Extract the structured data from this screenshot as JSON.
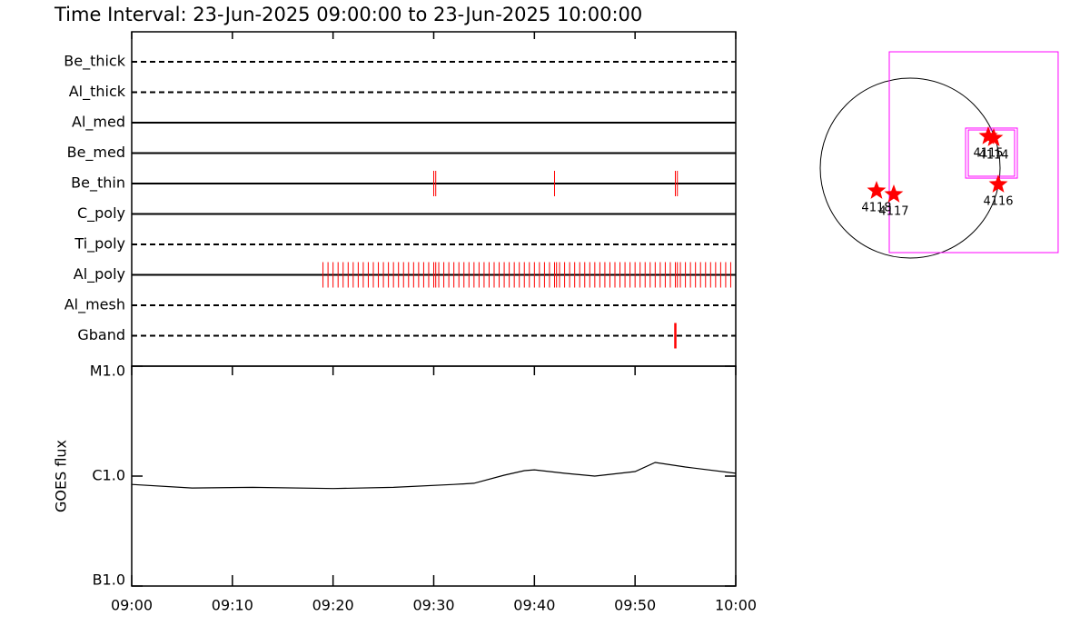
{
  "chart_data": [
    {
      "type": "timeline",
      "title": "Time Interval: 23-Jun-2025 09:00:00 to 23-Jun-2025 10:00:00",
      "xlim": [
        0,
        60
      ],
      "xticks": [
        {
          "value": 0,
          "label": "09:00"
        },
        {
          "value": 10,
          "label": "09:10"
        },
        {
          "value": 20,
          "label": "09:20"
        },
        {
          "value": 30,
          "label": "09:30"
        },
        {
          "value": 40,
          "label": "09:40"
        },
        {
          "value": 50,
          "label": "09:50"
        },
        {
          "value": 60,
          "label": "10:00"
        }
      ],
      "color": "#ff0000",
      "rows": [
        {
          "name": "Be_thick",
          "line": "dashed",
          "times": []
        },
        {
          "name": "Al_thick",
          "line": "dashed",
          "times": []
        },
        {
          "name": "Al_med",
          "line": "solid",
          "times": []
        },
        {
          "name": "Be_med",
          "line": "solid",
          "times": []
        },
        {
          "name": "Be_thin",
          "line": "solid",
          "times": [
            30.0,
            30.2,
            42.0,
            54.0,
            54.2
          ]
        },
        {
          "name": "C_poly",
          "line": "solid",
          "times": []
        },
        {
          "name": "Ti_poly",
          "line": "dashed",
          "times": []
        },
        {
          "name": "Al_poly",
          "line": "solid",
          "times": [
            19.0,
            19.5,
            20.0,
            20.5,
            21.0,
            21.5,
            22.0,
            22.5,
            23.0,
            23.5,
            24.0,
            24.5,
            25.0,
            25.5,
            26.0,
            26.5,
            27.0,
            27.5,
            28.0,
            28.5,
            29.0,
            29.5,
            30.0,
            30.2,
            30.5,
            31.0,
            31.5,
            32.0,
            32.5,
            33.0,
            33.5,
            34.0,
            34.5,
            35.0,
            35.5,
            36.0,
            36.5,
            37.0,
            37.5,
            38.0,
            38.5,
            39.0,
            39.5,
            40.0,
            40.5,
            41.0,
            41.5,
            42.0,
            42.2,
            42.5,
            43.0,
            43.5,
            44.0,
            44.5,
            45.0,
            45.5,
            46.0,
            46.5,
            47.0,
            47.5,
            48.0,
            48.5,
            49.0,
            49.5,
            50.0,
            50.5,
            51.0,
            51.5,
            52.0,
            52.5,
            53.0,
            53.5,
            54.0,
            54.2,
            54.5,
            55.0,
            55.5,
            56.0,
            56.5,
            57.0,
            57.5,
            58.0,
            58.5,
            59.0,
            59.5
          ]
        },
        {
          "name": "Al_mesh",
          "line": "dashed",
          "times": []
        },
        {
          "name": "Gband",
          "line": "dashed",
          "times": [
            54.0
          ]
        }
      ]
    },
    {
      "type": "line",
      "y_label": "GOES flux",
      "log_scale": true,
      "xlim": [
        0,
        60
      ],
      "xticks": [
        {
          "value": 0,
          "label": "09:00"
        },
        {
          "value": 10,
          "label": "09:10"
        },
        {
          "value": 20,
          "label": "09:20"
        },
        {
          "value": 30,
          "label": "09:30"
        },
        {
          "value": 40,
          "label": "09:40"
        },
        {
          "value": 50,
          "label": "09:50"
        },
        {
          "value": 60,
          "label": "10:00"
        }
      ],
      "ylim": [
        1e-07,
        1e-05
      ],
      "yticks": [
        {
          "value": 1e-07,
          "label": "B1.0"
        },
        {
          "value": 1e-06,
          "label": "C1.0"
        },
        {
          "value": 1e-05,
          "label": "M1.0"
        }
      ],
      "color": "#000000",
      "x": [
        0,
        6,
        12,
        20,
        26,
        32,
        34,
        37,
        39,
        40,
        43,
        46,
        50,
        52,
        55,
        60
      ],
      "values": [
        8.4e-07,
        7.8e-07,
        7.9e-07,
        7.7e-07,
        7.9e-07,
        8.4e-07,
        8.6e-07,
        1.02e-06,
        1.12e-06,
        1.14e-06,
        1.06e-06,
        1e-06,
        1.1e-06,
        1.33e-06,
        1.21e-06,
        1.06e-06
      ]
    },
    {
      "type": "sunmap",
      "radius": 960,
      "disk_color": "#000000",
      "fov_color": "#ff00ff",
      "star_color": "#ff0000",
      "fovs": [
        [
          -223,
          1580,
          1241,
          -902
        ],
        [
          592,
          1144,
          427,
          -107
        ],
        [
          621,
          1115,
          407,
          -87
        ]
      ],
      "regions": [
        {
          "label": "4115",
          "x": 834,
          "y": 340
        },
        {
          "label": "4114",
          "x": 892,
          "y": 320
        },
        {
          "label": "4116",
          "x": 941,
          "y": -175
        },
        {
          "label": "4117",
          "x": -175,
          "y": -281
        },
        {
          "label": "4118",
          "x": -359,
          "y": -242
        }
      ]
    }
  ]
}
